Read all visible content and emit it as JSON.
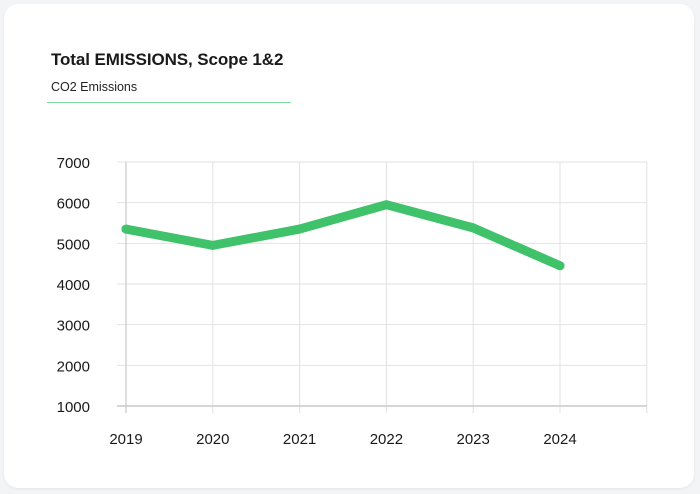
{
  "header": {
    "title": "Total EMISSIONS, Scope 1&2",
    "subtitle": "CO2 Emissions"
  },
  "colors": {
    "accent": "#3fc26a",
    "rule": "#7ed9a0",
    "grid": "#e2e2e2",
    "axis": "#c8c8c8"
  },
  "chart_data": {
    "type": "line",
    "categories": [
      "2019",
      "2020",
      "2021",
      "2022",
      "2023",
      "2024"
    ],
    "series": [
      {
        "values": [
          5350,
          4950,
          5350,
          5950,
          5380,
          4450
        ]
      }
    ],
    "y_ticks": [
      "7000",
      "6000",
      "5000",
      "4000",
      "3000",
      "2000",
      "1000"
    ],
    "ylim": [
      1000,
      7000
    ],
    "grid": true,
    "legend": "none"
  }
}
